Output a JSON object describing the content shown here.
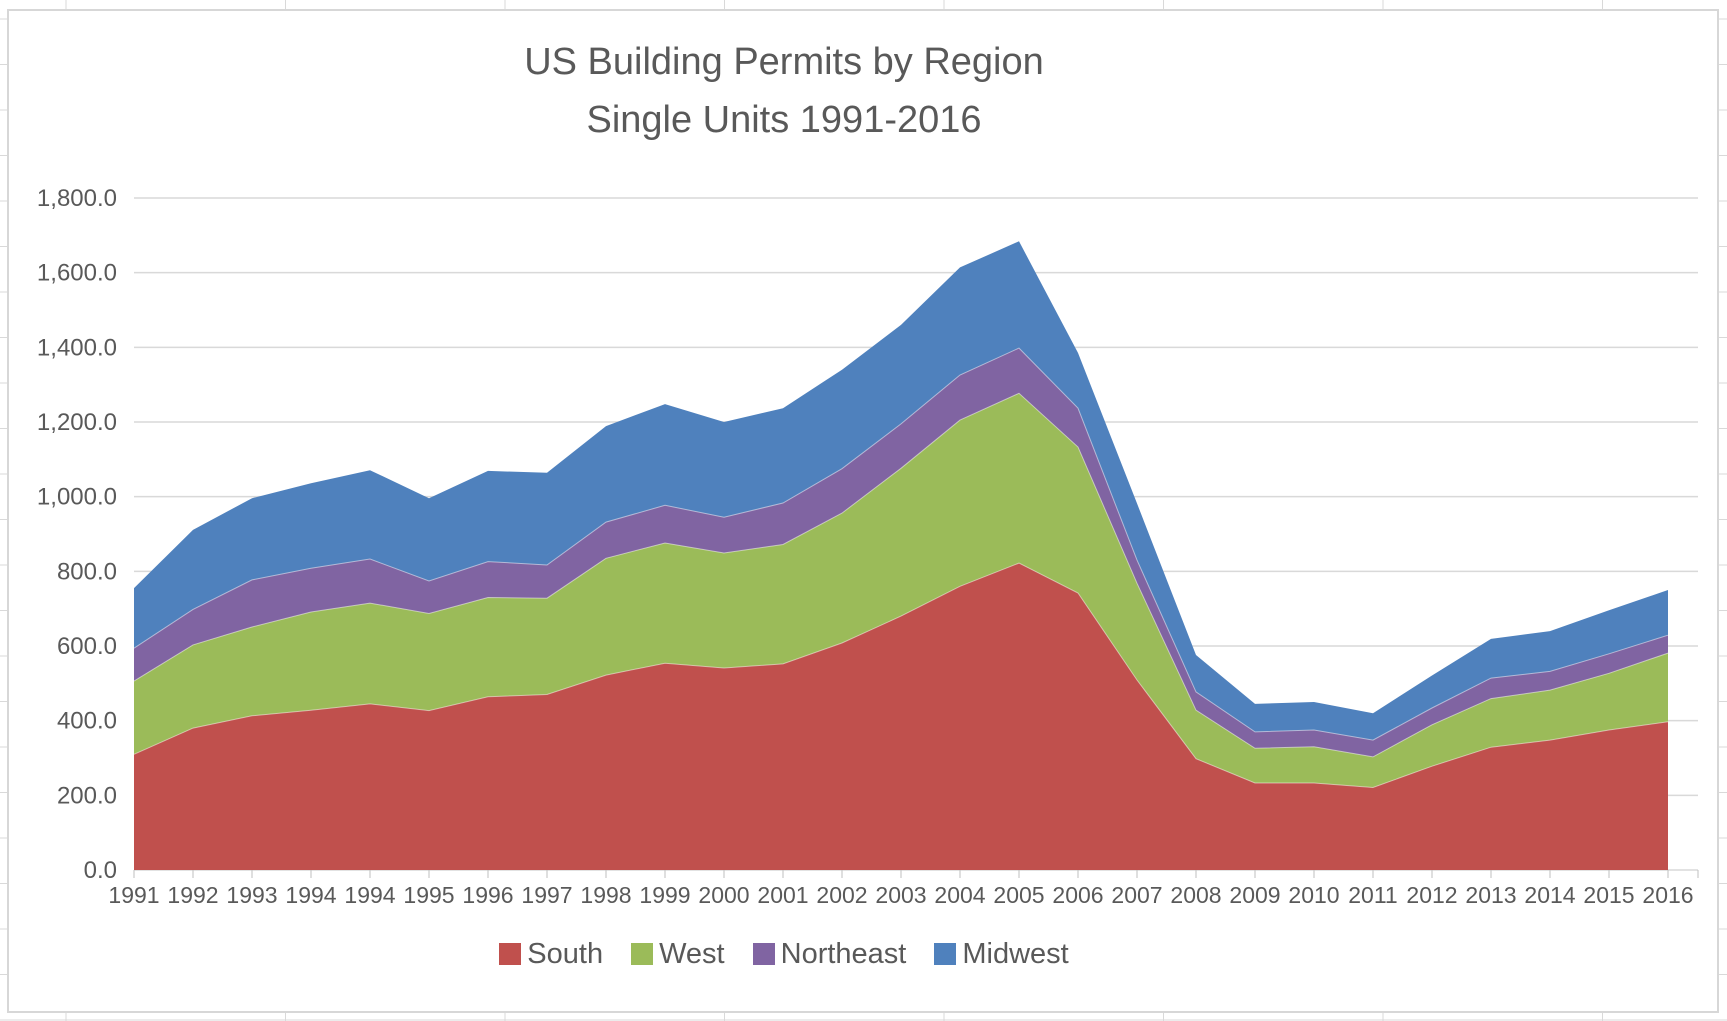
{
  "chart_data": {
    "type": "area",
    "stacked": true,
    "title_line1": "US Building Permits by Region",
    "title_line2": "Single Units 1991-2016",
    "categories": [
      "1991",
      "1992",
      "1993",
      "1994",
      "1994",
      "1995",
      "1996",
      "1997",
      "1998",
      "1999",
      "2000",
      "2001",
      "2002",
      "2003",
      "2004",
      "2005",
      "2006",
      "2007",
      "2008",
      "2009",
      "2010",
      "2011",
      "2012",
      "2013",
      "2014",
      "2015",
      "2016"
    ],
    "series": [
      {
        "name": "South",
        "color": "#C0504D",
        "values": [
          310,
          380,
          413,
          428,
          445,
          427,
          464,
          470,
          522,
          554,
          541,
          552,
          608,
          680,
          760,
          822,
          742,
          509,
          298,
          233,
          233,
          221,
          278,
          329,
          348,
          375,
          397
        ]
      },
      {
        "name": "West",
        "color": "#9BBB59",
        "values": [
          196,
          223,
          238,
          263,
          270,
          260,
          266,
          258,
          313,
          322,
          308,
          320,
          348,
          396,
          445,
          455,
          391,
          259,
          130,
          93,
          97,
          82,
          111,
          130,
          134,
          152,
          184
        ]
      },
      {
        "name": "Northeast",
        "color": "#8064A2",
        "values": [
          88,
          95,
          126,
          117,
          118,
          87,
          96,
          89,
          97,
          101,
          96,
          111,
          119,
          119,
          121,
          121,
          104,
          62,
          49,
          44,
          45,
          45,
          45,
          55,
          50,
          52,
          48
        ]
      },
      {
        "name": "Midwest",
        "color": "#4F81BD",
        "values": [
          161,
          213,
          219,
          228,
          238,
          222,
          243,
          247,
          257,
          271,
          255,
          254,
          265,
          265,
          288,
          286,
          148,
          152,
          99,
          75,
          75,
          72,
          87,
          105,
          108,
          117,
          121
        ]
      }
    ],
    "ylabel": "",
    "xlabel": "",
    "ylim": [
      0,
      1800
    ],
    "y_tick_step": 200,
    "y_tick_labels": [
      "0.0",
      "200.0",
      "400.0",
      "600.0",
      "800.0",
      "1,000.0",
      "1,200.0",
      "1,400.0",
      "1,600.0",
      "1,800.0"
    ],
    "grid": true,
    "legend_position": "bottom",
    "colors": {
      "axis_text": "#595959",
      "gridline": "#D9D9D9",
      "tick": "#BFBFBF",
      "chart_border": "#D7D7D7",
      "sheet_gridline": "#D9D9D9"
    }
  }
}
